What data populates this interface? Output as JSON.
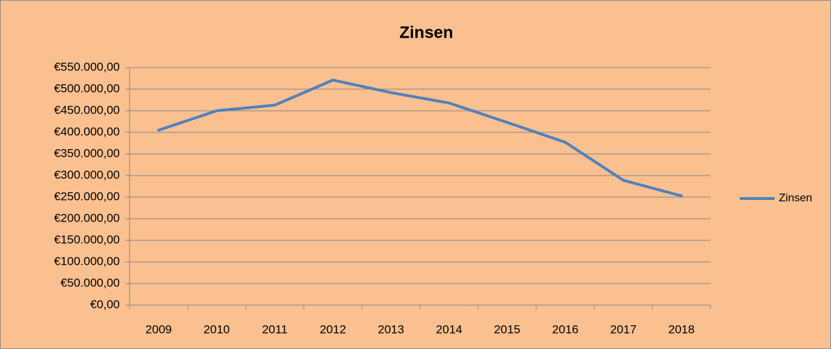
{
  "chart_data": {
    "type": "line",
    "title": "Zinsen",
    "categories": [
      "2009",
      "2010",
      "2011",
      "2012",
      "2013",
      "2014",
      "2015",
      "2016",
      "2017",
      "2018"
    ],
    "series": [
      {
        "name": "Zinsen",
        "color": "#4f81bd",
        "values": [
          405000,
          450000,
          463000,
          521000,
          492000,
          468000,
          423000,
          377000,
          289000,
          253000
        ]
      }
    ],
    "ylim": [
      0,
      550000
    ],
    "yticks": [
      {
        "value": 0,
        "label": "€0,00"
      },
      {
        "value": 50000,
        "label": "€50.000,00"
      },
      {
        "value": 100000,
        "label": "€100.000,00"
      },
      {
        "value": 150000,
        "label": "€150.000,00"
      },
      {
        "value": 200000,
        "label": "€200.000,00"
      },
      {
        "value": 250000,
        "label": "€250.000,00"
      },
      {
        "value": 300000,
        "label": "€300.000,00"
      },
      {
        "value": 350000,
        "label": "€350.000,00"
      },
      {
        "value": 400000,
        "label": "€400.000,00"
      },
      {
        "value": 450000,
        "label": "€450.000,00"
      },
      {
        "value": 500000,
        "label": "€500.000,00"
      },
      {
        "value": 550000,
        "label": "€550.000,00"
      }
    ],
    "grid": true,
    "legend": "right",
    "background": "#fac090"
  }
}
